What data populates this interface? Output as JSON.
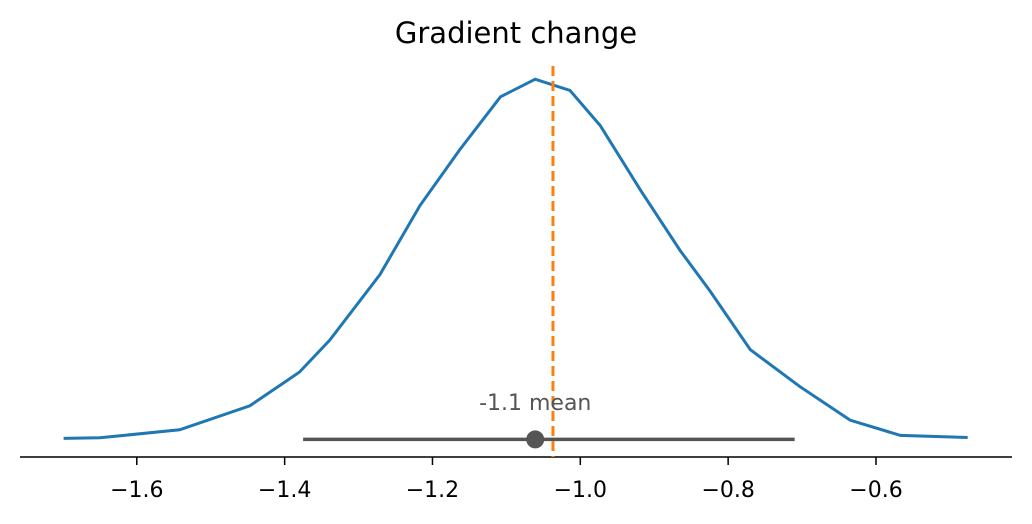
{
  "chart_data": {
    "type": "kde",
    "title": "Gradient change",
    "x": [
      -1.699,
      -1.65,
      -1.542,
      -1.447,
      -1.38,
      -1.339,
      -1.271,
      -1.217,
      -1.163,
      -1.108,
      -1.061,
      -1.014,
      -0.973,
      -0.919,
      -0.865,
      -0.825,
      -0.77,
      -0.703,
      -0.635,
      -0.567,
      -0.476
    ],
    "values": [
      0.006,
      0.01,
      0.06,
      0.21,
      0.42,
      0.62,
      1.03,
      1.46,
      1.81,
      2.14,
      2.25,
      2.18,
      1.96,
      1.56,
      1.18,
      0.93,
      0.56,
      0.33,
      0.12,
      0.025,
      0.012
    ],
    "color": "#1f77b4",
    "hdi": [
      -1.375,
      -0.71
    ],
    "hdi_color": "#555555",
    "mean": {
      "value": -1.061,
      "label": "-1.1 mean"
    },
    "ref_value": -1.037,
    "ref_color": "#ff7f0e",
    "xlim": [
      -1.758,
      -0.416
    ],
    "ylim": [
      -0.11,
      2.37
    ],
    "xticks": [
      {
        "value": -1.6,
        "label": "−1.6"
      },
      {
        "value": -1.4,
        "label": "−1.4"
      },
      {
        "value": -1.2,
        "label": "−1.2"
      },
      {
        "value": -1.0,
        "label": "−1.0"
      },
      {
        "value": -0.8,
        "label": "−0.8"
      },
      {
        "value": -0.6,
        "label": "−0.6"
      }
    ]
  }
}
